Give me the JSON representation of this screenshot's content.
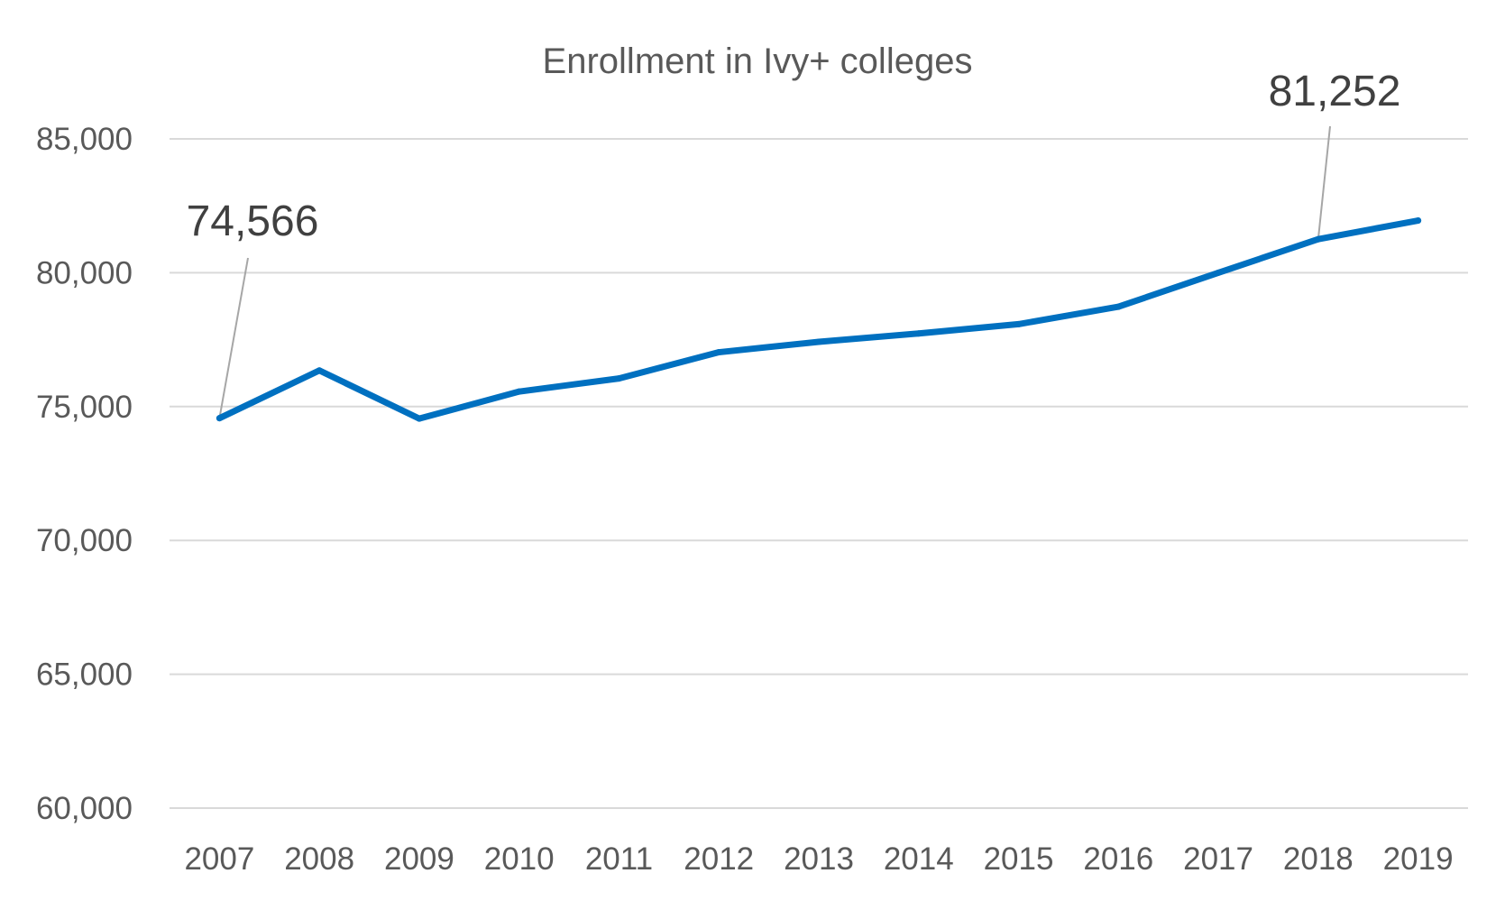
{
  "chart_data": {
    "type": "line",
    "title": "Enrollment in Ivy+ colleges",
    "xlabel": "",
    "ylabel": "",
    "categories": [
      "2007",
      "2008",
      "2009",
      "2010",
      "2011",
      "2012",
      "2013",
      "2014",
      "2015",
      "2016",
      "2017",
      "2018",
      "2019"
    ],
    "series": [
      {
        "name": "Enrollment",
        "color": "#0070c0",
        "values": [
          74566,
          76350,
          74550,
          75560,
          76050,
          77030,
          77420,
          77730,
          78080,
          78730,
          80000,
          81252,
          81950
        ]
      }
    ],
    "ylim": [
      60000,
      85000
    ],
    "yticks": [
      60000,
      65000,
      70000,
      75000,
      80000,
      85000
    ],
    "ytick_labels": [
      "60,000",
      "65,000",
      "70,000",
      "75,000",
      "80,000",
      "85,000"
    ],
    "grid": true,
    "legend": "none",
    "annotations": [
      {
        "label": "74,566",
        "category": "2007"
      },
      {
        "label": "81,252",
        "category": "2018"
      }
    ]
  }
}
